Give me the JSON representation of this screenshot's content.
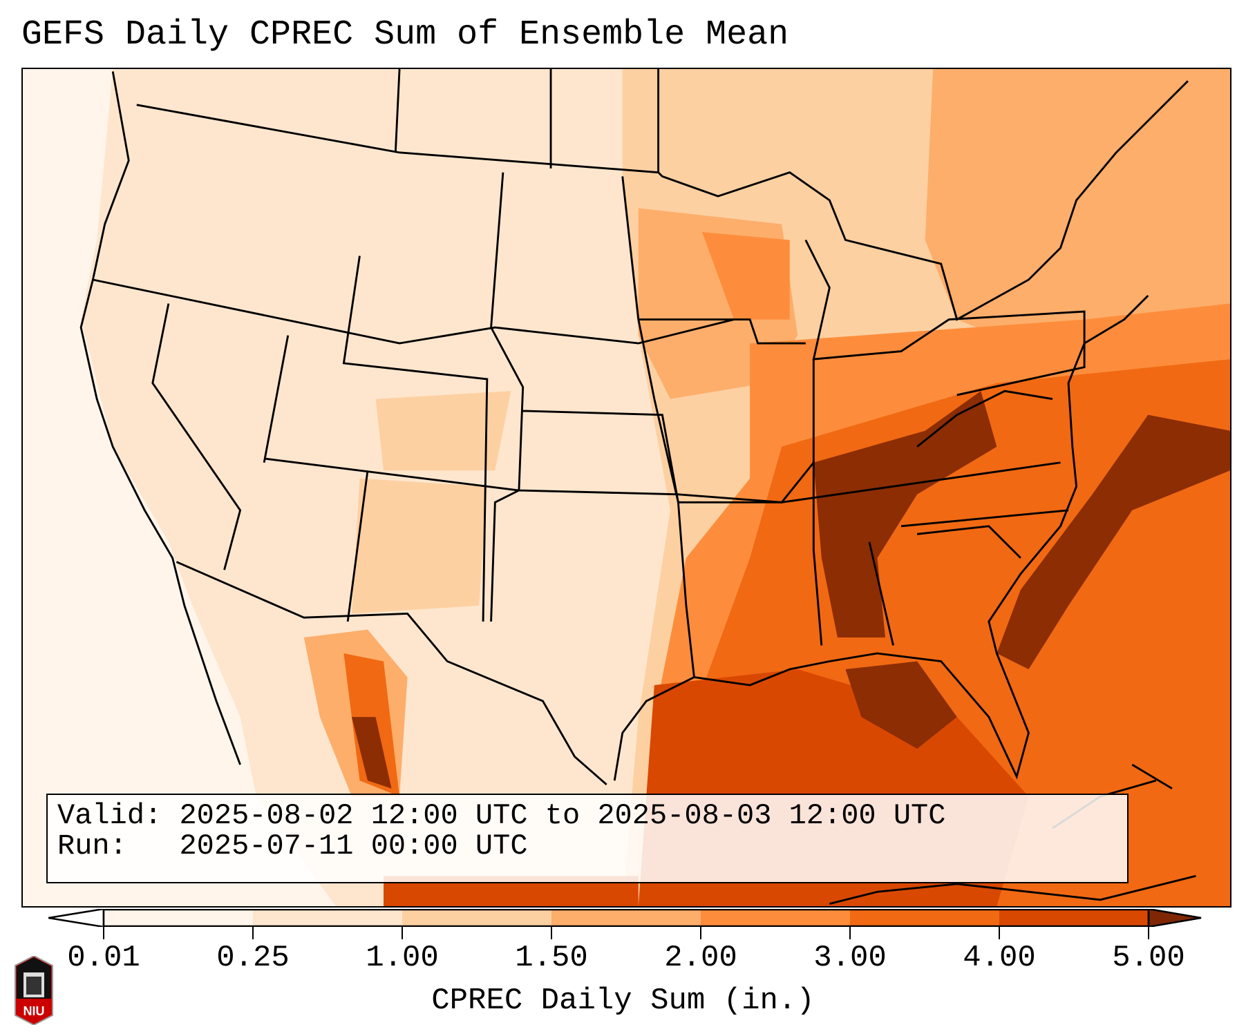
{
  "title": "GEFS Daily CPREC Sum of Ensemble Mean",
  "info": {
    "valid_label": "Valid:",
    "valid_value": "2025-08-02 12:00 UTC to 2025-08-03 12:00 UTC",
    "run_label": "Run:",
    "run_value": "2025-07-11 00:00 UTC"
  },
  "colorbar": {
    "label": "CPREC Daily Sum (in.)",
    "ticks": [
      "0.01",
      "0.25",
      "1.00",
      "1.50",
      "2.00",
      "3.00",
      "4.00",
      "5.00"
    ],
    "colors": [
      "#fff5eb",
      "#fee6ce",
      "#fdd0a2",
      "#fdae6b",
      "#fd8d3c",
      "#f16913",
      "#d94801",
      "#8c2d04"
    ],
    "under_color": "#ffffff",
    "over_color": "#7f2704"
  },
  "logo": {
    "text": "NIU"
  }
}
